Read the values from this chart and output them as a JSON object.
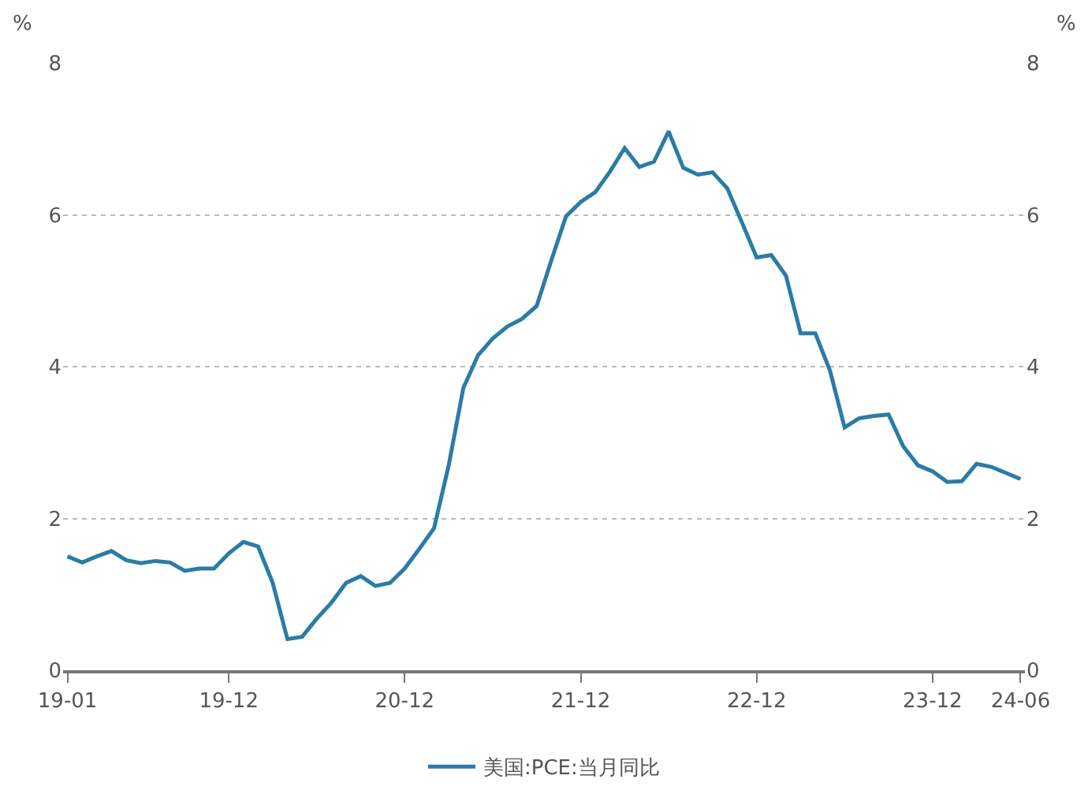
{
  "chart_data": {
    "type": "line",
    "ylabel": "%",
    "y2label": "%",
    "categories": [
      "19-01",
      null,
      null,
      null,
      null,
      null,
      null,
      null,
      null,
      null,
      null,
      "19-12",
      null,
      null,
      null,
      null,
      null,
      null,
      null,
      null,
      null,
      null,
      null,
      "20-12",
      null,
      null,
      null,
      null,
      null,
      null,
      null,
      null,
      null,
      null,
      null,
      "21-12",
      null,
      null,
      null,
      null,
      null,
      null,
      null,
      null,
      null,
      null,
      null,
      "22-12",
      null,
      null,
      null,
      null,
      null,
      null,
      null,
      null,
      null,
      null,
      null,
      "23-12",
      null,
      null,
      null,
      null,
      null,
      "24-06"
    ],
    "series": [
      {
        "name": "美国:PCE:当月同比",
        "color": "#2a7ca6",
        "values": [
          1.5,
          1.42,
          1.5,
          1.57,
          1.45,
          1.41,
          1.44,
          1.42,
          1.31,
          1.34,
          1.34,
          1.54,
          1.69,
          1.63,
          1.15,
          0.41,
          0.44,
          0.68,
          0.89,
          1.15,
          1.24,
          1.11,
          1.15,
          1.34,
          1.6,
          1.87,
          2.7,
          3.72,
          4.15,
          4.37,
          4.53,
          4.63,
          4.8,
          5.4,
          5.98,
          6.17,
          6.3,
          6.57,
          6.88,
          6.63,
          6.7,
          7.1,
          6.62,
          6.53,
          6.56,
          6.35,
          5.9,
          5.44,
          5.47,
          5.2,
          4.44,
          4.44,
          3.95,
          3.2,
          3.32,
          3.35,
          3.37,
          2.95,
          2.7,
          2.62,
          2.48,
          2.49,
          2.72,
          2.68,
          2.6,
          2.52
        ]
      }
    ],
    "ylim": [
      0,
      8
    ],
    "yticks": [
      0,
      2,
      4,
      6,
      8
    ],
    "y2lim": [
      0,
      8
    ],
    "y2ticks": [
      0,
      2,
      4,
      6,
      8
    ],
    "grid": "y",
    "legend": "bottom",
    "line_style": "solid"
  }
}
